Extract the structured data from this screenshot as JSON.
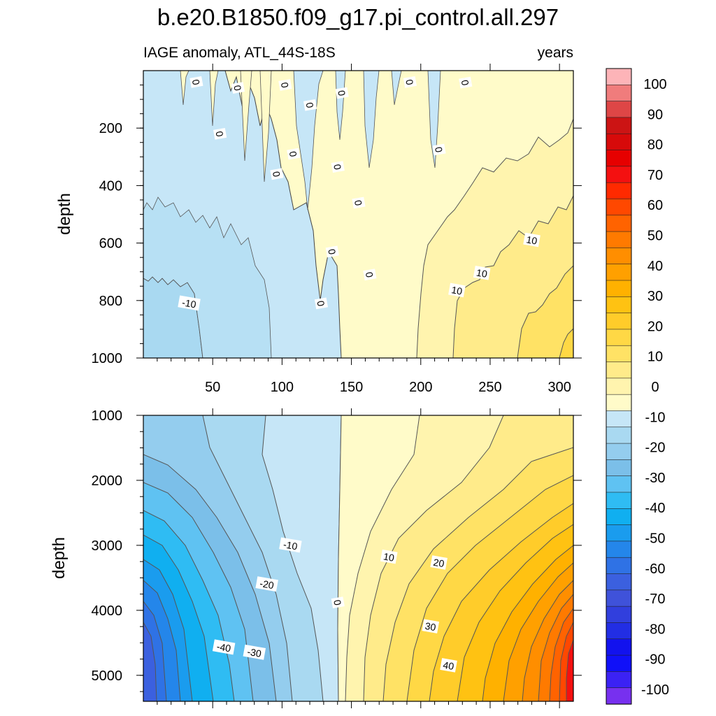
{
  "chart_data": {
    "type": "contour",
    "title": "b.e20.B1850.f09_g17.pi_control.all.297",
    "subtitle_left": "IAGE anomaly, ATL_44S-18S",
    "subtitle_right": "years",
    "x_range": [
      0,
      310
    ],
    "x_ticks": [
      50,
      100,
      150,
      200,
      250,
      300
    ],
    "panels": [
      {
        "name": "upper",
        "ylabel": "depth",
        "ylim": [
          0,
          1000
        ],
        "y_ticks": [
          200,
          400,
          600,
          800,
          1000
        ],
        "contour_labels": [
          {
            "text": "0",
            "x": 38,
            "y": 40
          },
          {
            "text": "0",
            "x": 68,
            "y": 60
          },
          {
            "text": "0",
            "x": 102,
            "y": 50
          },
          {
            "text": "0",
            "x": 120,
            "y": 120
          },
          {
            "text": "0",
            "x": 143,
            "y": 78
          },
          {
            "text": "0",
            "x": 192,
            "y": 40
          },
          {
            "text": "0",
            "x": 232,
            "y": 42
          },
          {
            "text": "0",
            "x": 55,
            "y": 220
          },
          {
            "text": "0",
            "x": 108,
            "y": 290
          },
          {
            "text": "0",
            "x": 96,
            "y": 360
          },
          {
            "text": "0",
            "x": 140,
            "y": 335
          },
          {
            "text": "0",
            "x": 155,
            "y": 460
          },
          {
            "text": "0",
            "x": 136,
            "y": 630
          },
          {
            "text": "0",
            "x": 163,
            "y": 710
          },
          {
            "text": "0",
            "x": 128,
            "y": 810
          },
          {
            "text": "0",
            "x": 213,
            "y": 275
          },
          {
            "text": "-10",
            "x": 33,
            "y": 810
          },
          {
            "text": "10",
            "x": 226,
            "y": 765
          },
          {
            "text": "10",
            "x": 244,
            "y": 705
          },
          {
            "text": "10",
            "x": 280,
            "y": 590
          }
        ]
      },
      {
        "name": "lower",
        "ylabel": "depth",
        "ylim": [
          1000,
          5400
        ],
        "y_ticks": [
          1000,
          2000,
          3000,
          4000,
          5000
        ],
        "contour_labels": [
          {
            "text": "-10",
            "x": 106,
            "y": 3000
          },
          {
            "text": "-20",
            "x": 89,
            "y": 3600
          },
          {
            "text": "-40",
            "x": 58,
            "y": 4570
          },
          {
            "text": "-30",
            "x": 80,
            "y": 4650
          },
          {
            "text": "0",
            "x": 140,
            "y": 3880
          },
          {
            "text": "10",
            "x": 177,
            "y": 3180
          },
          {
            "text": "20",
            "x": 213,
            "y": 3270
          },
          {
            "text": "30",
            "x": 207,
            "y": 4250
          },
          {
            "text": "40",
            "x": 220,
            "y": 4850
          }
        ]
      }
    ],
    "colorbar": {
      "levels": [
        -100,
        -90,
        -80,
        -70,
        -60,
        -50,
        -40,
        -30,
        -20,
        -10,
        0,
        10,
        20,
        30,
        40,
        50,
        60,
        70,
        80,
        90,
        100
      ],
      "labels": [
        "100",
        "90",
        "80",
        "70",
        "60",
        "50",
        "40",
        "30",
        "20",
        "10",
        "0",
        "-10",
        "-20",
        "-30",
        "-40",
        "-50",
        "-60",
        "-70",
        "-80",
        "-90",
        "-100"
      ],
      "colors_top_to_bottom": [
        "#fdb4b8",
        "#f07c7c",
        "#de4646",
        "#cc1414",
        "#d70a0a",
        "#e60000",
        "#f41010",
        "#ff2a00",
        "#ff4800",
        "#ff6300",
        "#ff7a00",
        "#ff8e00",
        "#ffa000",
        "#ffb100",
        "#ffc212",
        "#ffcc2a",
        "#ffd845",
        "#ffe265",
        "#ffeb8a",
        "#fff4ae",
        "#fffbc9",
        "#c6e6f7",
        "#a9d9f1",
        "#94cdee",
        "#7bbfe9",
        "#5fc2f2",
        "#2fbcf3",
        "#10aff0",
        "#1a9cee",
        "#2486ea",
        "#2f72e5",
        "#3b60df",
        "#3f52da",
        "#313fdd",
        "#222ee4",
        "#1212ee",
        "#1010f8",
        "#3b22f4",
        "#7730ef"
      ]
    }
  }
}
